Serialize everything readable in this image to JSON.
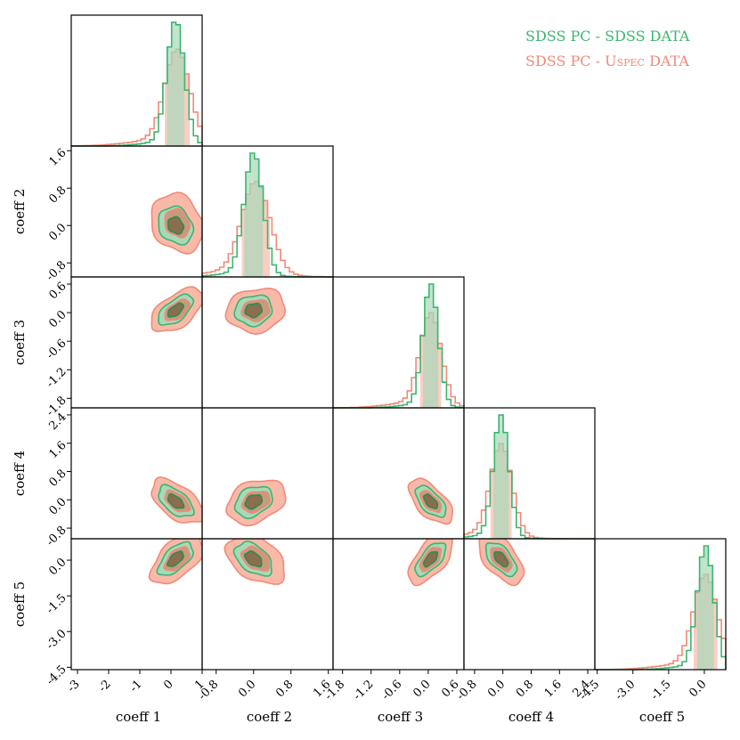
{
  "legend": {
    "sdss_label": "SDSS PC - SDSS DATA",
    "uspec_prefix": "SDSS PC - ",
    "uspec_smallcaps": "Uspec",
    "uspec_suffix": " DATA"
  },
  "colors": {
    "sdss": "#3cb56f",
    "uspec": "#f08a78",
    "uspec_fill": "#f9b9a9",
    "sdss_fill": "#a7d9b8",
    "overlap_fill": "#8a6e4e",
    "frame": "#000000"
  },
  "chart_data": {
    "type": "corner",
    "parameters": [
      "coeff 1",
      "coeff 2",
      "coeff 3",
      "coeff 4",
      "coeff 5"
    ],
    "x_ticks": [
      [
        "-3",
        "-2",
        "-1",
        "0",
        "1"
      ],
      [
        "-0.8",
        "0.0",
        "0.8",
        "1.6"
      ],
      [
        "-1.8",
        "-1.2",
        "-0.6",
        "0.0",
        "0.6"
      ],
      [
        "-0.8",
        "0.0",
        "0.8",
        "1.6",
        "2.4"
      ],
      [
        "-4.5",
        "-3.0",
        "-1.5",
        "0.0"
      ]
    ],
    "y_ticks": [
      [],
      [
        "1.6",
        "0.8",
        "0.0",
        "-0.8"
      ],
      [
        "0.6",
        "0.0",
        "-0.6",
        "-1.2",
        "-1.8"
      ],
      [
        "2.4",
        "1.6",
        "0.8",
        "0.0",
        "-0.8"
      ],
      [
        "0.0",
        "-1.5",
        "-3.0",
        "-4.5"
      ]
    ],
    "ranges": [
      [
        -3.2,
        1.0
      ],
      [
        -1.1,
        1.7
      ],
      [
        -2.0,
        0.75
      ],
      [
        -1.1,
        2.6
      ],
      [
        -4.6,
        0.9
      ]
    ],
    "series": [
      {
        "name": "SDSS PC - SDSS DATA",
        "means": [
          0.15,
          0.0,
          0.05,
          -0.05,
          0.05
        ],
        "sds": [
          0.28,
          0.2,
          0.16,
          0.22,
          0.35
        ],
        "correlations": {
          "1-2": -0.2,
          "1-3": 0.6,
          "2-3": 0.1,
          "1-4": -0.55,
          "2-4": 0.3,
          "3-4": -0.6,
          "1-5": 0.6,
          "2-5": -0.45,
          "3-5": 0.65,
          "4-5": -0.6
        }
      },
      {
        "name": "SDSS PC - Uspec DATA",
        "means": [
          0.2,
          0.05,
          0.05,
          -0.05,
          0.05
        ],
        "sds": [
          0.4,
          0.3,
          0.22,
          0.3,
          0.5
        ],
        "correlations": {
          "1-2": -0.2,
          "1-3": 0.55,
          "2-3": 0.1,
          "1-4": -0.55,
          "2-4": 0.3,
          "3-4": -0.6,
          "1-5": 0.55,
          "2-5": -0.4,
          "3-5": 0.6,
          "4-5": -0.55
        }
      }
    ],
    "legend_position": "top-right",
    "grid": false
  }
}
